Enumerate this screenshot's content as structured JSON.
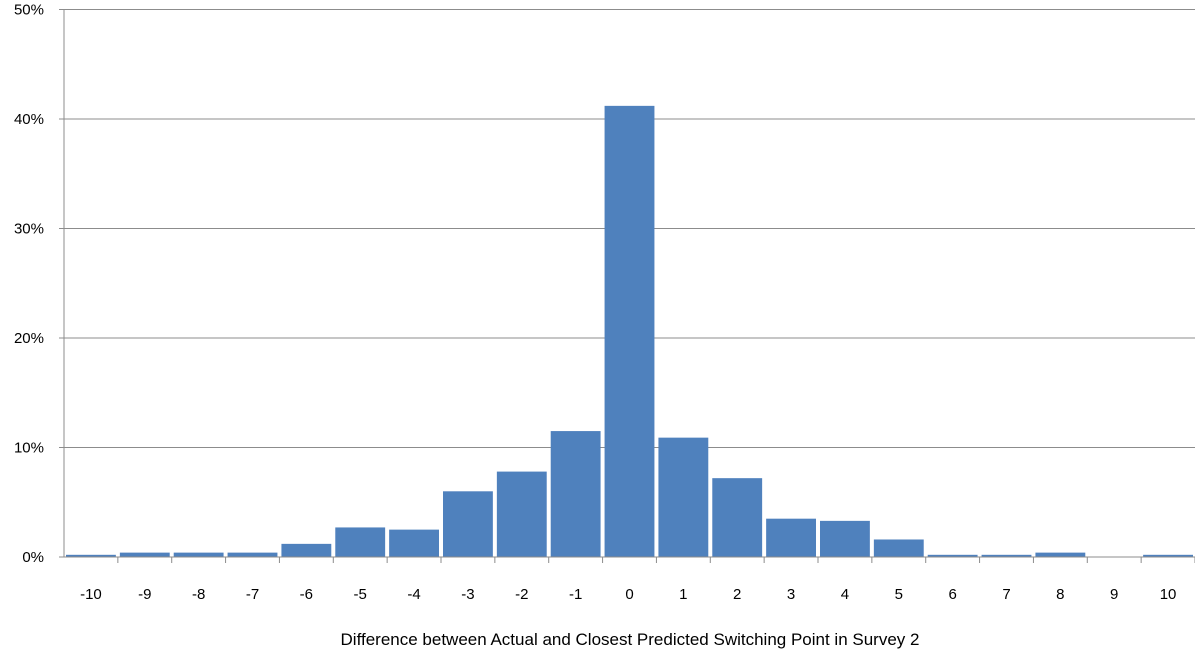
{
  "chart_data": {
    "type": "bar",
    "title": "",
    "xlabel": "Difference between Actual and Closest Predicted Switching Point in Survey 2",
    "ylabel": "",
    "categories": [
      "-10",
      "-9",
      "-8",
      "-7",
      "-6",
      "-5",
      "-4",
      "-3",
      "-2",
      "-1",
      "0",
      "1",
      "2",
      "3",
      "4",
      "5",
      "6",
      "7",
      "8",
      "9",
      "10"
    ],
    "values": [
      0.2,
      0.4,
      0.4,
      0.4,
      1.2,
      2.7,
      2.5,
      6.0,
      7.8,
      11.5,
      41.2,
      10.9,
      7.2,
      3.5,
      3.3,
      1.6,
      0.2,
      0.2,
      0.4,
      0.0,
      0.2
    ],
    "ylim": [
      0,
      50
    ],
    "yticks": [
      "0%",
      "10%",
      "20%",
      "30%",
      "40%",
      "50%"
    ],
    "grid": true,
    "legend": "none",
    "bar_color": "#4F81BD",
    "grid_color": "#8C8C8C"
  }
}
